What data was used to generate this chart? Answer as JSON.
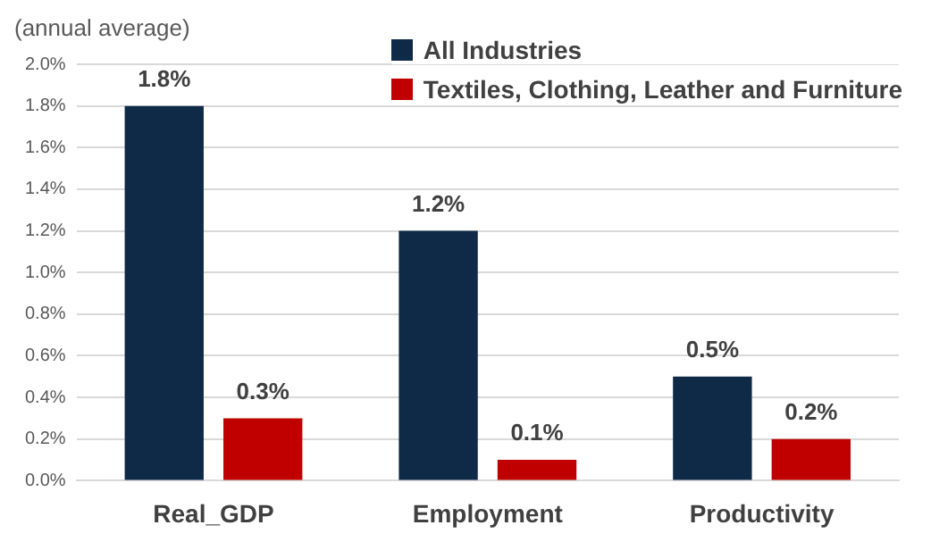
{
  "chart_data": {
    "type": "bar",
    "annotations": [
      "(annual average)"
    ],
    "categories": [
      "Real_GDP",
      "Employment",
      "Productivity"
    ],
    "series": [
      {
        "name": "All Industries",
        "color": "#0f2a47",
        "values": [
          1.8,
          1.2,
          0.5
        ],
        "value_labels": [
          "1.8%",
          "1.2%",
          "0.5%"
        ]
      },
      {
        "name": "Textiles, Clothing, Leather and Furniture",
        "color": "#c00000",
        "values": [
          0.3,
          0.1,
          0.2
        ],
        "value_labels": [
          "0.3%",
          "0.1%",
          "0.2%"
        ]
      }
    ],
    "ylim": [
      0,
      2
    ],
    "yticks": [
      {
        "value": 0,
        "label": "0.0%"
      },
      {
        "value": 0.2,
        "label": "0.2%"
      },
      {
        "value": 0.4,
        "label": "0.4%"
      },
      {
        "value": 0.6,
        "label": "0.6%"
      },
      {
        "value": 0.8,
        "label": "0.8%"
      },
      {
        "value": 1,
        "label": "1.0%"
      },
      {
        "value": 1.2,
        "label": "1.2%"
      },
      {
        "value": 1.4,
        "label": "1.4%"
      },
      {
        "value": 1.6,
        "label": "1.6%"
      },
      {
        "value": 1.8,
        "label": "1.8%"
      },
      {
        "value": 2,
        "label": "2.0%"
      }
    ],
    "grid": "y",
    "legend": "top right"
  }
}
